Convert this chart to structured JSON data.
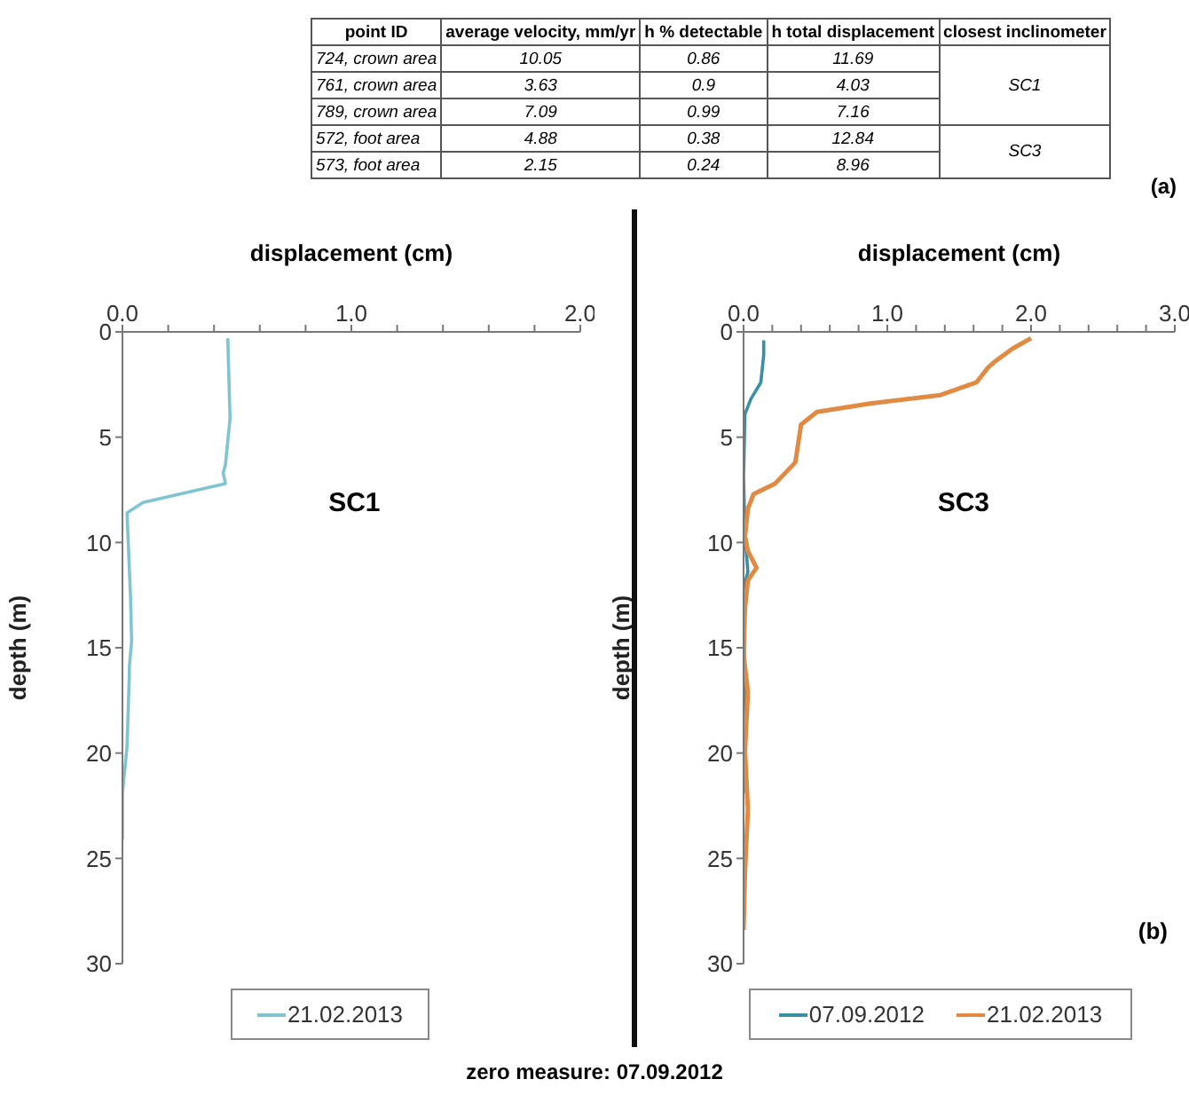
{
  "chart_data": [
    {
      "type": "other",
      "annotations": [
        "point ID",
        "average velocity, mm/yr",
        "h % detectable",
        "h total displacement",
        "closest inclinometer",
        "724, crown area",
        "10.05",
        "0.86",
        "11.69",
        "761, crown area",
        "3.63",
        "0.9",
        "4.03",
        "789, crown area",
        "7.09",
        "0.99",
        "7.16",
        "572, foot area",
        "4.88",
        "0.38",
        "12.84",
        "573, foot area",
        "2.15",
        "0.24",
        "8.96",
        "SC1",
        "SC3",
        "(a)"
      ]
    },
    {
      "type": "line",
      "xlabel": "displacement (cm)",
      "ylabel": "depth (m)",
      "xlim": [
        0,
        2
      ],
      "xticks": [
        {
          "value": 0,
          "label": "0.0"
        },
        {
          "value": 0.2,
          "label": null
        },
        {
          "value": 0.4,
          "label": null
        },
        {
          "value": 0.6,
          "label": null
        },
        {
          "value": 0.8,
          "label": null
        },
        {
          "value": 1,
          "label": "1.0"
        },
        {
          "value": 1.2,
          "label": null
        },
        {
          "value": 1.4,
          "label": null
        },
        {
          "value": 1.6,
          "label": null
        },
        {
          "value": 1.8,
          "label": null
        },
        {
          "value": 2,
          "label": "2.0"
        }
      ],
      "ylim": [
        30,
        0
      ],
      "yticks": [
        0,
        5,
        10,
        15,
        20,
        25,
        30
      ],
      "legend": "bottom",
      "annotations": [
        "SC1"
      ],
      "series": [
        {
          "name": "21.02.2013",
          "color": "#7fc4cf",
          "x": [
            0.46,
            0.47,
            0.45,
            0.44,
            0.45,
            0.09,
            0.02,
            0.035,
            0.04,
            0.03,
            0.03,
            0.02,
            0.0,
            0.0
          ],
          "values": [
            0.3,
            4.1,
            6.3,
            6.7,
            7.2,
            8.1,
            8.6,
            12.5,
            14.7,
            15.9,
            16.3,
            19.7,
            21.9,
            24.1
          ]
        }
      ]
    },
    {
      "type": "line",
      "xlabel": "displacement (cm)",
      "ylabel": "depth (m)",
      "xlim": [
        0,
        3
      ],
      "xticks": [
        {
          "value": 0,
          "label": "0.0"
        },
        {
          "value": 0.2,
          "label": null
        },
        {
          "value": 0.4,
          "label": null
        },
        {
          "value": 0.6,
          "label": null
        },
        {
          "value": 0.8,
          "label": null
        },
        {
          "value": 1,
          "label": "1.0"
        },
        {
          "value": 1.2,
          "label": null
        },
        {
          "value": 1.4,
          "label": null
        },
        {
          "value": 1.6,
          "label": null
        },
        {
          "value": 1.8,
          "label": null
        },
        {
          "value": 2,
          "label": "2.0"
        },
        {
          "value": 2.2,
          "label": null
        },
        {
          "value": 2.4,
          "label": null
        },
        {
          "value": 2.6,
          "label": null
        },
        {
          "value": 2.8,
          "label": null
        },
        {
          "value": 3,
          "label": "3.0"
        }
      ],
      "ylim": [
        30,
        0
      ],
      "yticks": [
        0,
        5,
        10,
        15,
        20,
        25,
        30
      ],
      "legend": "bottom",
      "annotations": [
        "SC3",
        "(b)",
        "zero measure: 07.09.2012"
      ],
      "series": [
        {
          "name": "07.09.2012",
          "color": "#3a8fa5",
          "x": [
            0.14,
            0.14,
            0.12,
            0.05,
            0.01,
            0.0,
            0.01,
            0.03,
            0.0,
            0.01,
            0.0
          ],
          "values": [
            0.4,
            1.1,
            2.4,
            3.2,
            3.9,
            6.9,
            9.7,
            11.4,
            12.2,
            18.0,
            21.9
          ]
        },
        {
          "name": "21.02.2013",
          "color": "#e08a43",
          "x": [
            2.0,
            1.87,
            1.75,
            1.7,
            1.62,
            1.37,
            0.88,
            0.51,
            0.4,
            0.38,
            0.36,
            0.22,
            0.07,
            0.03,
            0.01,
            0.03,
            0.09,
            0.03,
            0.01,
            0.0,
            0.03,
            0.01,
            0.03,
            0.01,
            0.0
          ],
          "values": [
            0.3,
            0.8,
            1.4,
            1.7,
            2.4,
            3.0,
            3.4,
            3.8,
            4.4,
            5.3,
            6.2,
            7.2,
            7.7,
            8.4,
            9.7,
            10.4,
            11.2,
            11.8,
            13.1,
            15.3,
            17.1,
            19.9,
            22.7,
            25.6,
            28.4
          ]
        }
      ]
    }
  ]
}
